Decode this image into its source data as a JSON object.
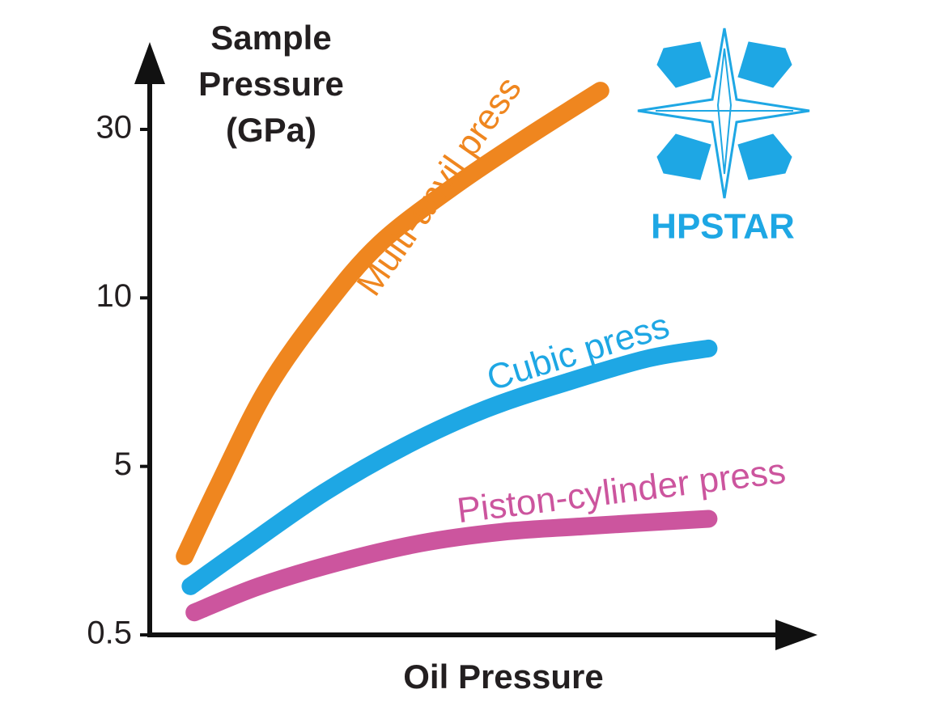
{
  "chart_data": {
    "type": "line",
    "ylabel": [
      "Sample",
      "Pressure",
      "(GPa)"
    ],
    "xlabel": "Oil Pressure",
    "logo": "HPSTAR",
    "yscale": "piecewise",
    "ylim": [
      0.5,
      40
    ],
    "yticks": [
      0.5,
      5,
      10,
      30
    ],
    "xlim": [
      0,
      100
    ],
    "series": [
      {
        "name": "Multi-anvil press",
        "color": "#ef861f",
        "x": [
          5.4,
          10.6,
          18.1,
          26.9,
          35.6,
          46.9,
          58.1,
          69.6
        ],
        "values": [
          2.6,
          4.5,
          7.3,
          9.7,
          16.5,
          23.2,
          29.0,
          34.6
        ]
      },
      {
        "name": "Cubic press",
        "color": "#1ea7e4",
        "x": [
          6.3,
          14.4,
          26.9,
          39.4,
          51.9,
          64.4,
          76.9,
          86.3
        ],
        "values": [
          1.8,
          2.8,
          4.3,
          5.6,
          6.7,
          7.5,
          8.2,
          8.5
        ]
      },
      {
        "name": "Piston-cylinder press",
        "color": "#cc559e",
        "x": [
          6.9,
          16.9,
          29.4,
          41.9,
          54.4,
          66.9,
          86.3
        ],
        "values": [
          1.1,
          1.8,
          2.45,
          2.95,
          3.25,
          3.4,
          3.6
        ]
      }
    ]
  }
}
